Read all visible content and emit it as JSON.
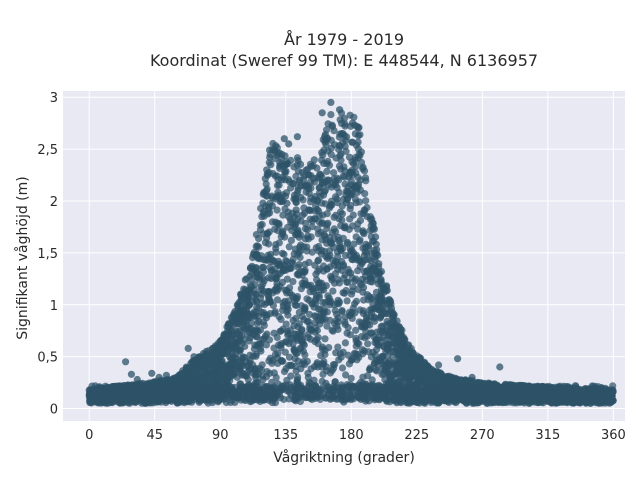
{
  "chart_data": {
    "type": "scatter",
    "title_line1": "År 1979 - 2019",
    "title_line2": "Koordinat (Sweref 99 TM): E 448544, N 6136957",
    "xlabel": "Vågriktning (grader)",
    "ylabel": "Signifikant våghöjd (m)",
    "xlim": [
      -18,
      368
    ],
    "ylim": [
      -0.12,
      3.06
    ],
    "xticks": [
      0,
      45,
      90,
      135,
      180,
      225,
      270,
      315,
      360
    ],
    "yticks": [
      0,
      0.5,
      1,
      1.5,
      2,
      2.5,
      3
    ],
    "ytick_labels": [
      "0",
      "0,5",
      "1",
      "1,5",
      "2",
      "2,5",
      "3"
    ],
    "grid": true,
    "marker_color": "#2e5368",
    "background_color": "#e8e9f2",
    "envelope": {
      "x": [
        0,
        20,
        40,
        60,
        70,
        80,
        90,
        100,
        110,
        120,
        125,
        130,
        140,
        150,
        160,
        165,
        170,
        180,
        185,
        190,
        200,
        210,
        220,
        230,
        240,
        250,
        270,
        300,
        330,
        360
      ],
      "max": [
        0.18,
        0.22,
        0.25,
        0.3,
        0.45,
        0.55,
        0.65,
        0.95,
        1.35,
        2.15,
        2.6,
        2.55,
        2.45,
        2.35,
        2.55,
        2.85,
        2.85,
        2.85,
        2.75,
        2.2,
        1.4,
        0.9,
        0.6,
        0.45,
        0.35,
        0.3,
        0.25,
        0.22,
        0.2,
        0.18
      ]
    },
    "outliers": [
      {
        "x": 2,
        "y": 0.17
      },
      {
        "x": 6,
        "y": 0.2
      },
      {
        "x": 12,
        "y": 0.15
      },
      {
        "x": 18,
        "y": 0.21
      },
      {
        "x": 25,
        "y": 0.45
      },
      {
        "x": 29,
        "y": 0.33
      },
      {
        "x": 33,
        "y": 0.28
      },
      {
        "x": 38,
        "y": 0.12
      },
      {
        "x": 43,
        "y": 0.34
      },
      {
        "x": 48,
        "y": 0.3
      },
      {
        "x": 53,
        "y": 0.32
      },
      {
        "x": 58,
        "y": 0.28
      },
      {
        "x": 68,
        "y": 0.58
      },
      {
        "x": 72,
        "y": 0.5
      },
      {
        "x": 78,
        "y": 0.46
      },
      {
        "x": 134,
        "y": 2.6
      },
      {
        "x": 137,
        "y": 2.55
      },
      {
        "x": 143,
        "y": 2.62
      },
      {
        "x": 160,
        "y": 2.85
      },
      {
        "x": 166,
        "y": 2.95
      },
      {
        "x": 172,
        "y": 2.88
      },
      {
        "x": 240,
        "y": 0.42
      },
      {
        "x": 253,
        "y": 0.48
      },
      {
        "x": 263,
        "y": 0.3
      },
      {
        "x": 282,
        "y": 0.4
      },
      {
        "x": 300,
        "y": 0.18
      },
      {
        "x": 312,
        "y": 0.2
      },
      {
        "x": 325,
        "y": 0.2
      },
      {
        "x": 334,
        "y": 0.22
      },
      {
        "x": 345,
        "y": 0.18
      },
      {
        "x": 352,
        "y": 0.2
      },
      {
        "x": 357,
        "y": 0.17
      }
    ]
  }
}
